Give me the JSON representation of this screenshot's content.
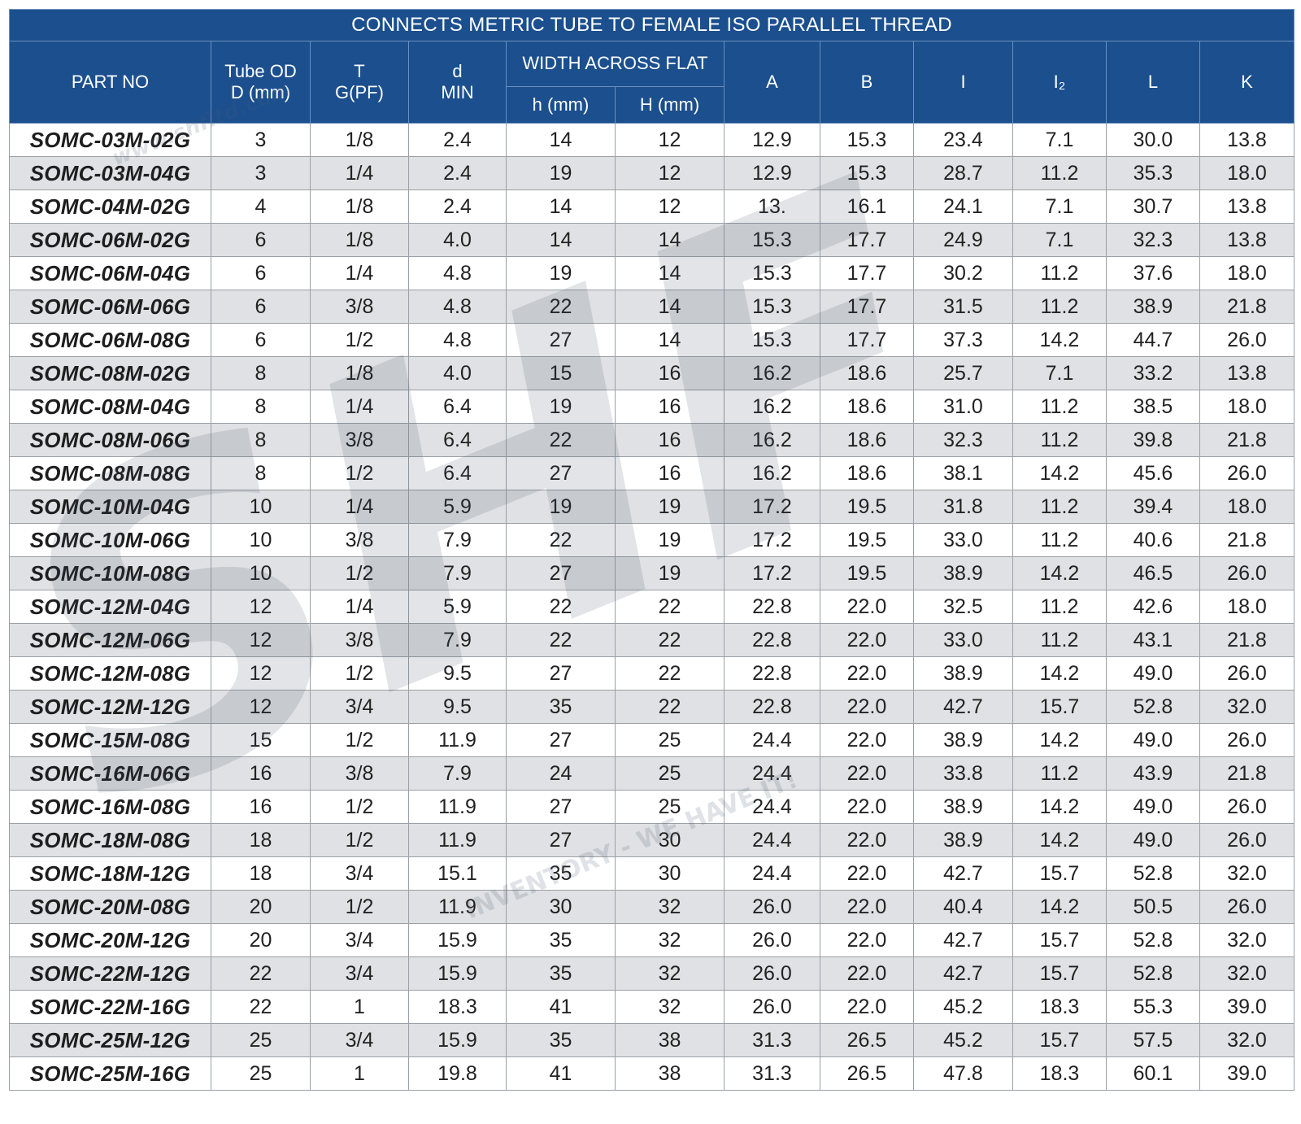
{
  "title": "CONNECTS METRIC TUBE TO FEMALE ISO PARALLEL THREAD",
  "headers": {
    "part_no": "PART NO",
    "tube_od_1": "Tube OD",
    "tube_od_2": "D (mm)",
    "t_1": "T",
    "t_2": "G(PF)",
    "d_1": "d",
    "d_2": "MIN",
    "width_across_flat": "WIDTH ACROSS FLAT",
    "h_small": "h (mm)",
    "h_big": "H (mm)",
    "a": "A",
    "b": "B",
    "i": "I",
    "i2": "I₂",
    "l": "L",
    "k": "K"
  },
  "rows": [
    [
      "SOMC-03M-02G",
      "3",
      "1/8",
      "2.4",
      "14",
      "12",
      "12.9",
      "15.3",
      "23.4",
      "7.1",
      "30.0",
      "13.8"
    ],
    [
      "SOMC-03M-04G",
      "3",
      "1/4",
      "2.4",
      "19",
      "12",
      "12.9",
      "15.3",
      "28.7",
      "11.2",
      "35.3",
      "18.0"
    ],
    [
      "SOMC-04M-02G",
      "4",
      "1/8",
      "2.4",
      "14",
      "12",
      "13.",
      "16.1",
      "24.1",
      "7.1",
      "30.7",
      "13.8"
    ],
    [
      "SOMC-06M-02G",
      "6",
      "1/8",
      "4.0",
      "14",
      "14",
      "15.3",
      "17.7",
      "24.9",
      "7.1",
      "32.3",
      "13.8"
    ],
    [
      "SOMC-06M-04G",
      "6",
      "1/4",
      "4.8",
      "19",
      "14",
      "15.3",
      "17.7",
      "30.2",
      "11.2",
      "37.6",
      "18.0"
    ],
    [
      "SOMC-06M-06G",
      "6",
      "3/8",
      "4.8",
      "22",
      "14",
      "15.3",
      "17.7",
      "31.5",
      "11.2",
      "38.9",
      "21.8"
    ],
    [
      "SOMC-06M-08G",
      "6",
      "1/2",
      "4.8",
      "27",
      "14",
      "15.3",
      "17.7",
      "37.3",
      "14.2",
      "44.7",
      "26.0"
    ],
    [
      "SOMC-08M-02G",
      "8",
      "1/8",
      "4.0",
      "15",
      "16",
      "16.2",
      "18.6",
      "25.7",
      "7.1",
      "33.2",
      "13.8"
    ],
    [
      "SOMC-08M-04G",
      "8",
      "1/4",
      "6.4",
      "19",
      "16",
      "16.2",
      "18.6",
      "31.0",
      "11.2",
      "38.5",
      "18.0"
    ],
    [
      "SOMC-08M-06G",
      "8",
      "3/8",
      "6.4",
      "22",
      "16",
      "16.2",
      "18.6",
      "32.3",
      "11.2",
      "39.8",
      "21.8"
    ],
    [
      "SOMC-08M-08G",
      "8",
      "1/2",
      "6.4",
      "27",
      "16",
      "16.2",
      "18.6",
      "38.1",
      "14.2",
      "45.6",
      "26.0"
    ],
    [
      "SOMC-10M-04G",
      "10",
      "1/4",
      "5.9",
      "19",
      "19",
      "17.2",
      "19.5",
      "31.8",
      "11.2",
      "39.4",
      "18.0"
    ],
    [
      "SOMC-10M-06G",
      "10",
      "3/8",
      "7.9",
      "22",
      "19",
      "17.2",
      "19.5",
      "33.0",
      "11.2",
      "40.6",
      "21.8"
    ],
    [
      "SOMC-10M-08G",
      "10",
      "1/2",
      "7.9",
      "27",
      "19",
      "17.2",
      "19.5",
      "38.9",
      "14.2",
      "46.5",
      "26.0"
    ],
    [
      "SOMC-12M-04G",
      "12",
      "1/4",
      "5.9",
      "22",
      "22",
      "22.8",
      "22.0",
      "32.5",
      "11.2",
      "42.6",
      "18.0"
    ],
    [
      "SOMC-12M-06G",
      "12",
      "3/8",
      "7.9",
      "22",
      "22",
      "22.8",
      "22.0",
      "33.0",
      "11.2",
      "43.1",
      "21.8"
    ],
    [
      "SOMC-12M-08G",
      "12",
      "1/2",
      "9.5",
      "27",
      "22",
      "22.8",
      "22.0",
      "38.9",
      "14.2",
      "49.0",
      "26.0"
    ],
    [
      "SOMC-12M-12G",
      "12",
      "3/4",
      "9.5",
      "35",
      "22",
      "22.8",
      "22.0",
      "42.7",
      "15.7",
      "52.8",
      "32.0"
    ],
    [
      "SOMC-15M-08G",
      "15",
      "1/2",
      "11.9",
      "27",
      "25",
      "24.4",
      "22.0",
      "38.9",
      "14.2",
      "49.0",
      "26.0"
    ],
    [
      "SOMC-16M-06G",
      "16",
      "3/8",
      "7.9",
      "24",
      "25",
      "24.4",
      "22.0",
      "33.8",
      "11.2",
      "43.9",
      "21.8"
    ],
    [
      "SOMC-16M-08G",
      "16",
      "1/2",
      "11.9",
      "27",
      "25",
      "24.4",
      "22.0",
      "38.9",
      "14.2",
      "49.0",
      "26.0"
    ],
    [
      "SOMC-18M-08G",
      "18",
      "1/2",
      "11.9",
      "27",
      "30",
      "24.4",
      "22.0",
      "38.9",
      "14.2",
      "49.0",
      "26.0"
    ],
    [
      "SOMC-18M-12G",
      "18",
      "3/4",
      "15.1",
      "35",
      "30",
      "24.4",
      "22.0",
      "42.7",
      "15.7",
      "52.8",
      "32.0"
    ],
    [
      "SOMC-20M-08G",
      "20",
      "1/2",
      "11.9",
      "30",
      "32",
      "26.0",
      "22.0",
      "40.4",
      "14.2",
      "50.5",
      "26.0"
    ],
    [
      "SOMC-20M-12G",
      "20",
      "3/4",
      "15.9",
      "35",
      "32",
      "26.0",
      "22.0",
      "42.7",
      "15.7",
      "52.8",
      "32.0"
    ],
    [
      "SOMC-22M-12G",
      "22",
      "3/4",
      "15.9",
      "35",
      "32",
      "26.0",
      "22.0",
      "42.7",
      "15.7",
      "52.8",
      "32.0"
    ],
    [
      "SOMC-22M-16G",
      "22",
      "1",
      "18.3",
      "41",
      "32",
      "26.0",
      "22.0",
      "45.2",
      "18.3",
      "55.3",
      "39.0"
    ],
    [
      "SOMC-25M-12G",
      "25",
      "3/4",
      "15.9",
      "35",
      "38",
      "31.3",
      "26.5",
      "45.2",
      "15.7",
      "57.5",
      "32.0"
    ],
    [
      "SOMC-25M-16G",
      "25",
      "1",
      "19.8",
      "41",
      "38",
      "31.3",
      "26.5",
      "47.8",
      "18.3",
      "60.1",
      "39.0"
    ]
  ],
  "watermark": {
    "logo": "SHF",
    "url": "www.shfltd.com",
    "tagline": "INVENTORY - WE HAVE IT!"
  },
  "colors": {
    "header_bg": "#1b4f8e",
    "row_alt": "#dfe1e4",
    "border": "#9aa0a6"
  }
}
